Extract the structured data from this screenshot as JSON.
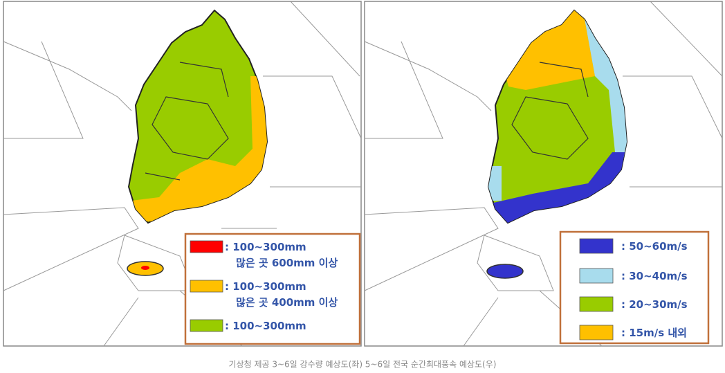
{
  "maps": [
    {
      "legend": [
        {
          "color": "#ff0000",
          "label": ": 100~300mm",
          "sublabel": "많은 곳 600mm 이상"
        },
        {
          "color": "#ffc000",
          "label": ": 100~300mm",
          "sublabel": "많은 곳 400mm 이상"
        },
        {
          "color": "#99cc00",
          "label": ": 100~300mm"
        }
      ]
    },
    {
      "legend": [
        {
          "color": "#3333cc",
          "label": ": 50~60m/s"
        },
        {
          "color": "#a8dced",
          "label": ": 30~40m/s"
        },
        {
          "color": "#99cc00",
          "label": ": 20~30m/s"
        },
        {
          "color": "#ffc000",
          "label": ": 15m/s 내외"
        }
      ]
    }
  ],
  "caption": "기상청 제공 3~6일 강수량 예상도(좌) 5~6일 전국 순간최대풍속 예상도(우)"
}
